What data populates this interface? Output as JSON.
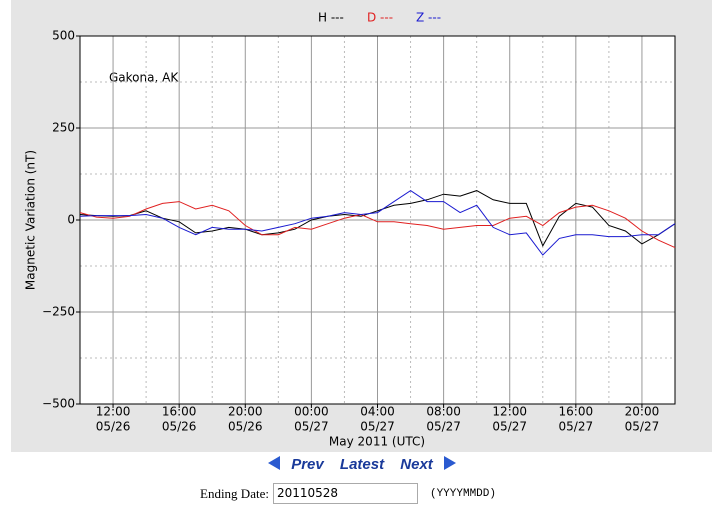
{
  "chart_data": {
    "type": "line",
    "annotation": "Gakona, AK",
    "y_label": "Magnetic Variation (nT)",
    "x_label": "May 2011 (UTC)",
    "x": [
      10,
      11,
      12,
      13,
      14,
      15,
      16,
      17,
      18,
      19,
      20,
      21,
      22,
      23,
      24,
      25,
      26,
      27,
      28,
      29,
      30,
      31,
      32,
      33,
      34,
      35,
      36,
      37,
      38,
      39,
      40,
      41,
      42,
      43,
      44,
      45,
      46
    ],
    "xlim": [
      10,
      46
    ],
    "xticks": [
      {
        "value": 12,
        "label": "12:00"
      },
      {
        "value": 16,
        "label": "16:00"
      },
      {
        "value": 20,
        "label": "20:00"
      },
      {
        "value": 24,
        "label": "00:00"
      },
      {
        "value": 28,
        "label": "04:00"
      },
      {
        "value": 32,
        "label": "08:00"
      },
      {
        "value": 36,
        "label": "12:00"
      },
      {
        "value": 40,
        "label": "16:00"
      },
      {
        "value": 44,
        "label": "20:00"
      }
    ],
    "xtick_dates": [
      "05/26",
      "05/26",
      "05/26",
      "05/27",
      "05/27",
      "05/27",
      "05/27",
      "05/27",
      "05/27"
    ],
    "xminor": [
      14,
      18,
      22,
      26,
      30,
      34,
      38,
      42
    ],
    "ylim": [
      -500,
      500
    ],
    "yticks": [
      {
        "value": -500,
        "label": "−500"
      },
      {
        "value": -250,
        "label": "−250"
      },
      0,
      250,
      500
    ],
    "yminor": [
      -375,
      -125,
      125,
      375
    ],
    "grid": true,
    "series": [
      {
        "name": "H ---",
        "color": "#000000",
        "values": [
          15,
          12,
          10,
          12,
          25,
          5,
          -5,
          -35,
          -30,
          -20,
          -25,
          -40,
          -35,
          -25,
          0,
          10,
          15,
          10,
          25,
          40,
          45,
          55,
          70,
          65,
          80,
          55,
          45,
          45,
          -70,
          10,
          45,
          35,
          -15,
          -30,
          -65,
          -40,
          -10
        ]
      },
      {
        "name": "D ---",
        "color": "#e02020",
        "values": [
          20,
          8,
          5,
          10,
          30,
          45,
          50,
          30,
          40,
          25,
          -15,
          -40,
          -40,
          -20,
          -25,
          -10,
          5,
          15,
          -5,
          -5,
          -10,
          -15,
          -25,
          -20,
          -15,
          -15,
          5,
          10,
          -15,
          20,
          35,
          40,
          25,
          5,
          -30,
          -55,
          -75
        ]
      },
      {
        "name": "Z ---",
        "color": "#1a1ad0",
        "values": [
          10,
          12,
          12,
          12,
          15,
          5,
          -20,
          -40,
          -20,
          -25,
          -25,
          -30,
          -20,
          -10,
          5,
          10,
          20,
          15,
          20,
          50,
          80,
          50,
          50,
          20,
          40,
          -20,
          -40,
          -35,
          -95,
          -50,
          -40,
          -40,
          -45,
          -45,
          -40,
          -40,
          -10
        ]
      }
    ]
  },
  "navigation": {
    "prev": "Prev",
    "latest": "Latest",
    "next": "Next"
  },
  "form": {
    "label": "Ending Date:",
    "value": "20110528",
    "hint": "(YYYYMMDD)"
  }
}
